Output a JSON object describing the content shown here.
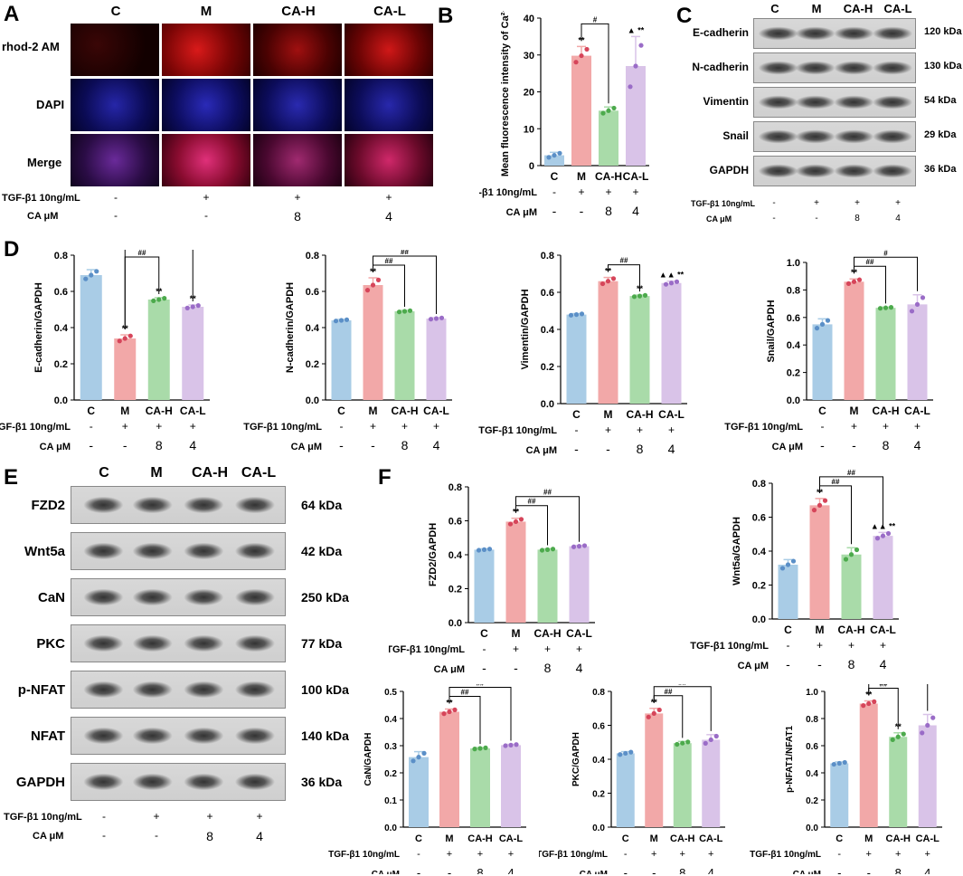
{
  "panels": {
    "A": "A",
    "B": "B",
    "C": "C",
    "D": "D",
    "E": "E",
    "F": "F"
  },
  "groups": [
    "C",
    "M",
    "CA-H",
    "CA-L"
  ],
  "treatment": {
    "tgf_label": "TGF-β1 10ng/mL",
    "ca_label": "CA μM",
    "tgf_values": [
      "-",
      "+",
      "+",
      "+"
    ],
    "ca_values": [
      "-",
      "-",
      "8",
      "4"
    ]
  },
  "panelA": {
    "rows": [
      "rhod-2 AM",
      "DAPI",
      "Merge"
    ]
  },
  "panelC": {
    "proteins": [
      "E-cadherin",
      "N-cadherin",
      "Vimentin",
      "Snail",
      "GAPDH"
    ],
    "kda": [
      "120 kDa",
      "130 kDa",
      "54 kDa",
      "29 kDa",
      "36 kDa"
    ]
  },
  "panelE": {
    "proteins": [
      "FZD2",
      "Wnt5a",
      "CaN",
      "PKC",
      "p-NFAT",
      "NFAT",
      "GAPDH"
    ],
    "kda": [
      "64 kDa",
      "42 kDa",
      "250 kDa",
      "77 kDa",
      "100 kDa",
      "140 kDa",
      "36 kDa"
    ]
  },
  "colors": {
    "C": "#a9cce6",
    "M": "#f2a8a8",
    "CA-H": "#a9dba9",
    "CA-L": "#d9c3e8"
  },
  "chart_data": [
    {
      "id": "B",
      "type": "bar",
      "categories": [
        "C",
        "M",
        "CA-H",
        "CA-L"
      ],
      "values": [
        2.8,
        29.8,
        14.9,
        27.0
      ],
      "errors": [
        0.8,
        2.5,
        1.0,
        8.0
      ],
      "ylabel": "Mean fluorescence intensity of Ca²⁺",
      "ylim": [
        0,
        40
      ],
      "ticks": [
        0,
        10,
        20,
        30,
        40
      ],
      "dec": 0,
      "sig": [
        [
          "**"
        ],
        [
          "",
          "",
          ""
        ],
        [
          "▲",
          "**"
        ]
      ],
      "brackets": [
        {
          "from": 1,
          "to": 2,
          "label": "#"
        }
      ],
      "pointmarks": {
        "1": "**",
        "3": "▲ **"
      }
    },
    {
      "id": "D1",
      "type": "bar",
      "categories": [
        "C",
        "M",
        "CA-H",
        "CA-L"
      ],
      "values": [
        0.69,
        0.34,
        0.555,
        0.515
      ],
      "errors": [
        0.03,
        0.02,
        0.01,
        0.01
      ],
      "ylabel": "E-cadherin/GAPDH",
      "ylim": [
        0,
        0.8
      ],
      "ticks": [
        0,
        0.2,
        0.4,
        0.6,
        0.8
      ],
      "dec": 1,
      "brackets": [
        {
          "from": 1,
          "to": 2,
          "label": "##"
        },
        {
          "from": 1,
          "to": 3,
          "label": "##"
        }
      ],
      "pointmarks": {
        "1": "**",
        "2": "**",
        "3": "**"
      }
    },
    {
      "id": "D2",
      "type": "bar",
      "categories": [
        "C",
        "M",
        "CA-H",
        "CA-L"
      ],
      "values": [
        0.44,
        0.635,
        0.49,
        0.45
      ],
      "errors": [
        0.005,
        0.04,
        0.005,
        0.005
      ],
      "ylabel": "N-cadherin/GAPDH",
      "ylim": [
        0,
        0.8
      ],
      "ticks": [
        0,
        0.2,
        0.4,
        0.6,
        0.8
      ],
      "dec": 1,
      "brackets": [
        {
          "from": 1,
          "to": 2,
          "label": "##"
        },
        {
          "from": 1,
          "to": 3,
          "label": "##"
        }
      ],
      "pointmarks": {
        "1": "**"
      }
    },
    {
      "id": "D3",
      "type": "bar",
      "categories": [
        "C",
        "M",
        "CA-H",
        "CA-L"
      ],
      "values": [
        0.48,
        0.66,
        0.58,
        0.65
      ],
      "errors": [
        0.005,
        0.02,
        0.005,
        0.01
      ],
      "ylabel": "Vimentin/GAPDH",
      "ylim": [
        0,
        0.8
      ],
      "ticks": [
        0,
        0.2,
        0.4,
        0.6,
        0.8
      ],
      "dec": 1,
      "brackets": [
        {
          "from": 1,
          "to": 2,
          "label": "##"
        }
      ],
      "pointmarks": {
        "1": "**",
        "2": "**",
        "3": "▲▲ **"
      }
    },
    {
      "id": "D4",
      "type": "bar",
      "categories": [
        "C",
        "M",
        "CA-H",
        "CA-L"
      ],
      "values": [
        0.55,
        0.86,
        0.67,
        0.695
      ],
      "errors": [
        0.04,
        0.02,
        0.005,
        0.07
      ],
      "ylabel": "Snail/GAPDH",
      "ylim": [
        0,
        1.0
      ],
      "ticks": [
        0,
        0.2,
        0.4,
        0.6,
        0.8,
        1.0
      ],
      "dec": 1,
      "brackets": [
        {
          "from": 1,
          "to": 2,
          "label": "##"
        },
        {
          "from": 1,
          "to": 3,
          "label": "#"
        }
      ],
      "pointmarks": {
        "1": "**"
      }
    },
    {
      "id": "F1",
      "type": "bar",
      "categories": [
        "C",
        "M",
        "CA-H",
        "CA-L"
      ],
      "values": [
        0.43,
        0.595,
        0.43,
        0.45
      ],
      "errors": [
        0.005,
        0.02,
        0.005,
        0.005
      ],
      "ylabel": "FZD2/GAPDH",
      "ylim": [
        0,
        0.8
      ],
      "ticks": [
        0,
        0.2,
        0.4,
        0.6,
        0.8
      ],
      "dec": 1,
      "brackets": [
        {
          "from": 1,
          "to": 2,
          "label": "##"
        },
        {
          "from": 1,
          "to": 3,
          "label": "##"
        }
      ],
      "pointmarks": {
        "1": "**"
      }
    },
    {
      "id": "F2",
      "type": "bar",
      "categories": [
        "C",
        "M",
        "CA-H",
        "CA-L"
      ],
      "values": [
        0.32,
        0.67,
        0.38,
        0.49
      ],
      "errors": [
        0.03,
        0.04,
        0.04,
        0.02
      ],
      "ylabel": "Wnt5a/GAPDH",
      "ylim": [
        0,
        0.8
      ],
      "ticks": [
        0,
        0.2,
        0.4,
        0.6,
        0.8
      ],
      "dec": 1,
      "brackets": [
        {
          "from": 1,
          "to": 2,
          "label": "##"
        },
        {
          "from": 1,
          "to": 3,
          "label": "##"
        }
      ],
      "pointmarks": {
        "1": "**",
        "3": "▲▲ **"
      }
    },
    {
      "id": "F3",
      "type": "bar",
      "categories": [
        "C",
        "M",
        "CA-H",
        "CA-L"
      ],
      "values": [
        0.258,
        0.425,
        0.29,
        0.302
      ],
      "errors": [
        0.02,
        0.01,
        0.003,
        0.003
      ],
      "ylabel": "CaN/GAPDH",
      "ylim": [
        0,
        0.5
      ],
      "ticks": [
        0,
        0.1,
        0.2,
        0.3,
        0.4,
        0.5
      ],
      "dec": 1,
      "brackets": [
        {
          "from": 1,
          "to": 2,
          "label": "##"
        },
        {
          "from": 1,
          "to": 3,
          "label": "##"
        }
      ],
      "pointmarks": {
        "1": "**"
      }
    },
    {
      "id": "F4",
      "type": "bar",
      "categories": [
        "C",
        "M",
        "CA-H",
        "CA-L"
      ],
      "values": [
        0.435,
        0.67,
        0.495,
        0.515
      ],
      "errors": [
        0.01,
        0.03,
        0.01,
        0.03
      ],
      "ylabel": "PKC/GAPDH",
      "ylim": [
        0,
        0.8
      ],
      "ticks": [
        0,
        0.2,
        0.4,
        0.6,
        0.8
      ],
      "dec": 1,
      "brackets": [
        {
          "from": 1,
          "to": 2,
          "label": "##"
        },
        {
          "from": 1,
          "to": 3,
          "label": "##"
        }
      ],
      "pointmarks": {
        "1": "**"
      }
    },
    {
      "id": "F5",
      "type": "bar",
      "categories": [
        "C",
        "M",
        "CA-H",
        "CA-L"
      ],
      "values": [
        0.47,
        0.91,
        0.665,
        0.75
      ],
      "errors": [
        0.01,
        0.02,
        0.03,
        0.08
      ],
      "ylabel": "p-NFAT1/NFAT1",
      "ylim": [
        0,
        1.0
      ],
      "ticks": [
        0,
        0.2,
        0.4,
        0.6,
        0.8,
        1.0
      ],
      "dec": 1,
      "brackets": [
        {
          "from": 1,
          "to": 2,
          "label": "##"
        },
        {
          "from": 1,
          "to": 3,
          "label": "##"
        }
      ],
      "pointmarks": {
        "1": "**",
        "2": "**"
      }
    }
  ]
}
